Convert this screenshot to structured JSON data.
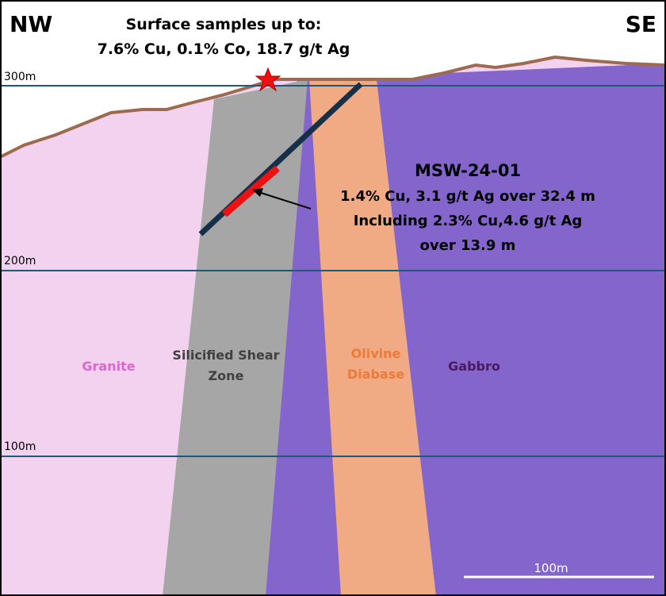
{
  "header": {
    "left": "NW",
    "right": "SE"
  },
  "surface_note": {
    "lines": [
      "Surface samples up to:",
      "7.6% Cu, 0.1% Co, 18.7 g/t Ag"
    ]
  },
  "elevations": [
    "300m",
    "200m",
    "100m"
  ],
  "drillhole": {
    "name": "MSW-24-01",
    "lines": [
      "1.4% Cu, 3.1 g/t Ag over 32.4 m",
      "Including 2.3% Cu,4.6 g/t Ag",
      "over 13.9 m"
    ]
  },
  "units": {
    "granite": "Granite",
    "shear_zone": [
      "Silicified Shear",
      "Zone"
    ],
    "diabase": [
      "Olivine",
      "Diabase"
    ],
    "gabbro": "Gabbro"
  },
  "scale_bar": "100m"
}
